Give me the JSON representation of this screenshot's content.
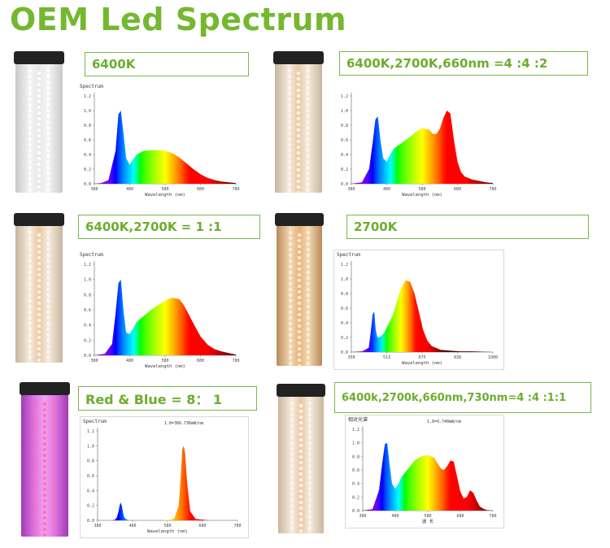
{
  "page": {
    "title": "OEM Led Spectrum"
  },
  "panels": [
    {
      "id": "p1",
      "label": "6400K",
      "lamp": "cool"
    },
    {
      "id": "p2",
      "label": "6400K,2700K,660nm =4 :4 :2",
      "lamp": "mix"
    },
    {
      "id": "p3",
      "label": "6400K,2700K = 1 :1",
      "lamp": "mix"
    },
    {
      "id": "p4",
      "label": "2700K",
      "lamp": "warm"
    },
    {
      "id": "p5",
      "label": "Red & Blue = 8： 1",
      "lamp": "purple"
    },
    {
      "id": "p6",
      "label": "6400k,2700k,660nm,730nm=4 :4 :1:1",
      "lamp": "mix"
    }
  ],
  "chart_data": [
    {
      "type": "area",
      "title": "Spectrum",
      "xlabel": "Wavelength (nm)",
      "ylabel": "",
      "xlim": [
        380,
        780
      ],
      "ylim": [
        0,
        1.2
      ],
      "x_ticks": [
        "380",
        "480",
        "580",
        "680",
        "780"
      ],
      "y_ticks": [
        "0.0",
        "0.2",
        "0.4",
        "0.6",
        "0.8",
        "1.0",
        "1.2"
      ],
      "x": [
        380,
        400,
        420,
        440,
        448,
        455,
        462,
        470,
        480,
        490,
        500,
        520,
        540,
        560,
        580,
        600,
        620,
        640,
        660,
        680,
        700,
        720,
        740,
        760,
        780
      ],
      "values": [
        0,
        0.01,
        0.05,
        0.45,
        0.95,
        1.0,
        0.7,
        0.35,
        0.26,
        0.34,
        0.4,
        0.45,
        0.46,
        0.46,
        0.45,
        0.42,
        0.36,
        0.28,
        0.2,
        0.13,
        0.08,
        0.05,
        0.03,
        0.02,
        0.01
      ]
    },
    {
      "type": "area",
      "title": "",
      "xlabel": "Wavelength (nm)",
      "ylabel": "",
      "xlim": [
        380,
        780
      ],
      "ylim": [
        0,
        1.2
      ],
      "x_ticks": [
        "380",
        "480",
        "580",
        "680",
        "780"
      ],
      "y_ticks": [
        "0.0",
        "0.2",
        "0.4",
        "0.6",
        "0.8",
        "1.0",
        "1.2"
      ],
      "x": [
        380,
        410,
        430,
        440,
        448,
        455,
        462,
        470,
        480,
        490,
        500,
        520,
        540,
        560,
        580,
        600,
        610,
        620,
        630,
        640,
        650,
        660,
        670,
        680,
        690,
        700,
        720,
        740,
        760,
        780
      ],
      "values": [
        0,
        0.02,
        0.2,
        0.55,
        0.88,
        0.92,
        0.6,
        0.35,
        0.3,
        0.4,
        0.48,
        0.55,
        0.62,
        0.7,
        0.76,
        0.74,
        0.68,
        0.68,
        0.75,
        0.9,
        1.0,
        0.96,
        0.6,
        0.3,
        0.16,
        0.1,
        0.06,
        0.04,
        0.02,
        0.01
      ]
    },
    {
      "type": "area",
      "title": "Spectrum",
      "xlabel": "Wavelength (nm)",
      "ylabel": "",
      "xlim": [
        380,
        780
      ],
      "ylim": [
        0,
        1.2
      ],
      "x_ticks": [
        "380",
        "480",
        "580",
        "680",
        "780"
      ],
      "y_ticks": [
        "0.0",
        "0.2",
        "0.4",
        "0.6",
        "0.8",
        "1.0",
        "1.2"
      ],
      "x": [
        380,
        410,
        430,
        440,
        448,
        455,
        462,
        470,
        480,
        490,
        500,
        520,
        540,
        560,
        580,
        600,
        620,
        630,
        640,
        660,
        680,
        700,
        720,
        740,
        760,
        780
      ],
      "values": [
        0,
        0.02,
        0.15,
        0.55,
        0.95,
        1.0,
        0.6,
        0.3,
        0.28,
        0.36,
        0.44,
        0.52,
        0.6,
        0.66,
        0.72,
        0.76,
        0.74,
        0.68,
        0.6,
        0.42,
        0.25,
        0.14,
        0.08,
        0.05,
        0.03,
        0.01
      ]
    },
    {
      "type": "area",
      "title": "Spectrum",
      "xlabel": "Wavelength (nm)",
      "ylabel": "",
      "xlim": [
        350,
        1000
      ],
      "ylim": [
        0,
        1.2
      ],
      "x_ticks": [
        "350",
        "513",
        "675",
        "838",
        "1000"
      ],
      "y_ticks": [
        "0.0",
        "0.2",
        "0.4",
        "0.6",
        "0.8",
        "1.0",
        "1.2"
      ],
      "x": [
        350,
        400,
        430,
        440,
        448,
        455,
        462,
        470,
        480,
        500,
        520,
        540,
        560,
        580,
        600,
        620,
        640,
        660,
        680,
        700,
        720,
        760,
        800,
        850,
        900,
        1000
      ],
      "values": [
        0,
        0.01,
        0.06,
        0.3,
        0.52,
        0.55,
        0.3,
        0.2,
        0.2,
        0.26,
        0.38,
        0.5,
        0.7,
        0.88,
        0.98,
        0.96,
        0.8,
        0.55,
        0.3,
        0.15,
        0.08,
        0.03,
        0.02,
        0.01,
        0.01,
        0
      ]
    },
    {
      "type": "area",
      "title": "Spectrum",
      "subtitle": "1.0=366.736mW/nm",
      "xlabel": "Wavelength (nm)",
      "ylabel": "",
      "xlim": [
        380,
        780
      ],
      "ylim": [
        0,
        1.2
      ],
      "x_ticks": [
        "380",
        "480",
        "580",
        "680",
        "780"
      ],
      "y_ticks": [
        "0.0",
        "0.2",
        "0.4",
        "0.6",
        "0.8",
        "1.0",
        "1.2"
      ],
      "x": [
        380,
        420,
        430,
        435,
        440,
        443,
        446,
        449,
        452,
        455,
        460,
        470,
        500,
        560,
        590,
        600,
        612,
        618,
        622,
        626,
        630,
        636,
        645,
        660,
        700,
        780
      ],
      "values": [
        0,
        0,
        0.01,
        0.04,
        0.12,
        0.2,
        0.24,
        0.2,
        0.12,
        0.05,
        0.02,
        0,
        0,
        0,
        0.01,
        0.03,
        0.2,
        0.6,
        0.95,
        1.0,
        0.9,
        0.5,
        0.12,
        0.02,
        0,
        0
      ]
    },
    {
      "type": "area",
      "title": "相对光谱",
      "subtitle": "1.0=9.740mW/nm",
      "xlabel": "波 长",
      "ylabel": "",
      "xlim": [
        380,
        780
      ],
      "ylim": [
        0,
        1.2
      ],
      "x_ticks": [
        "380",
        "480",
        "580",
        "680",
        "780"
      ],
      "y_ticks": [
        "0.0",
        "0.2",
        "0.4",
        "0.6",
        "0.8",
        "1.0",
        "1.2"
      ],
      "x": [
        380,
        410,
        430,
        440,
        448,
        455,
        462,
        470,
        480,
        490,
        500,
        520,
        540,
        560,
        580,
        600,
        610,
        620,
        630,
        640,
        650,
        660,
        670,
        680,
        690,
        700,
        710,
        720,
        730,
        740,
        750,
        760,
        780
      ],
      "values": [
        0,
        0.02,
        0.3,
        0.7,
        0.98,
        1.0,
        0.7,
        0.4,
        0.32,
        0.4,
        0.5,
        0.62,
        0.74,
        0.8,
        0.82,
        0.78,
        0.7,
        0.62,
        0.6,
        0.66,
        0.74,
        0.72,
        0.5,
        0.28,
        0.18,
        0.2,
        0.3,
        0.26,
        0.15,
        0.06,
        0.03,
        0.01,
        0
      ]
    }
  ]
}
